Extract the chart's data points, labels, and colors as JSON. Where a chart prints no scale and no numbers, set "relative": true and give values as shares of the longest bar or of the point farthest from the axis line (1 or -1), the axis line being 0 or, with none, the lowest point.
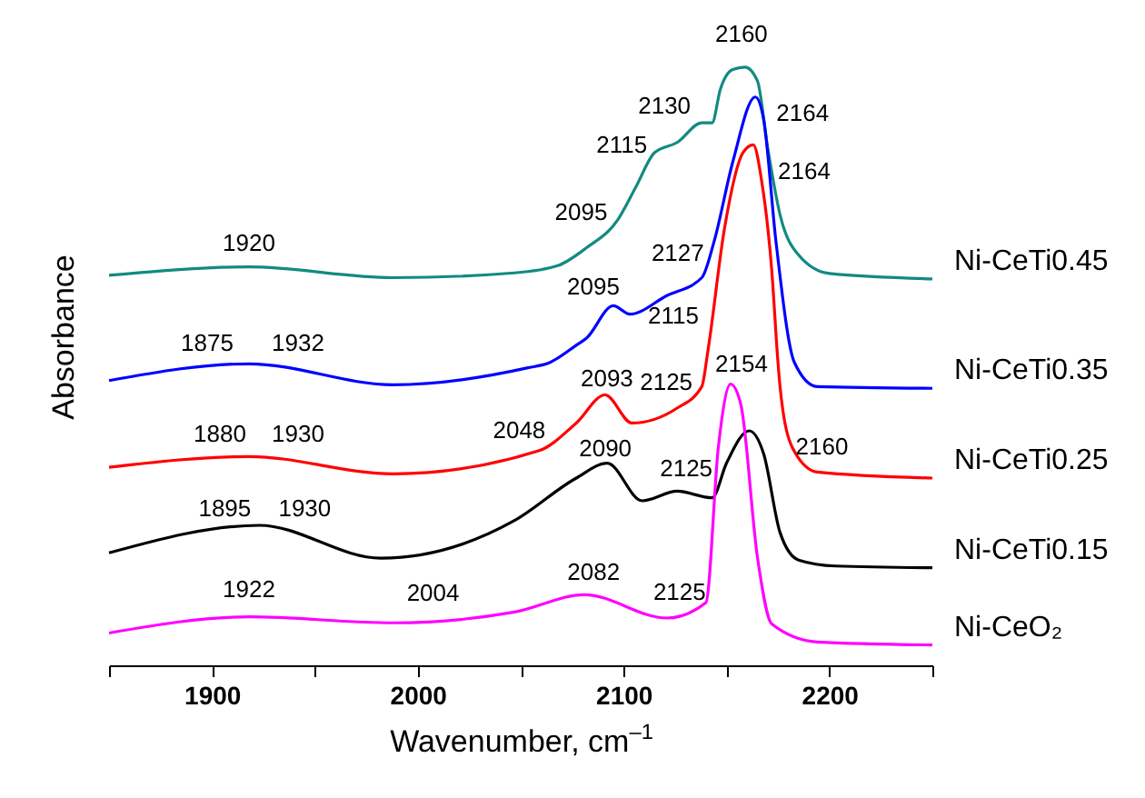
{
  "chart_data": {
    "type": "line",
    "xlabel": "Wavenumber, cm$^{–1}$",
    "ylabel": "Absorbance",
    "relative": true,
    "xlim": [
      1850,
      2250
    ],
    "xticks": [
      {
        "value": 1850,
        "label": null
      },
      1900,
      {
        "value": 1950,
        "label": null
      },
      2000,
      {
        "value": 2050,
        "label": null
      },
      2100,
      {
        "value": 2150,
        "label": null
      },
      2200,
      {
        "value": 2250,
        "label": null
      }
    ],
    "line_style": "solid",
    "series": [
      {
        "name": "Ni-CeTi0.45",
        "color": "#128a82",
        "x": [
          1850,
          1918,
          1988,
          2047,
          2068,
          2082,
          2097,
          2106,
          2115,
          2126,
          2138,
          2143,
          2147,
          2153,
          2159,
          2165,
          2170,
          2176,
          2185,
          2200,
          2250
        ],
        "values": [
          0.652,
          0.666,
          0.648,
          0.656,
          0.668,
          0.698,
          0.744,
          0.8,
          0.857,
          0.874,
          0.907,
          0.907,
          0.963,
          0.996,
          1.0,
          0.977,
          0.865,
          0.753,
          0.686,
          0.655,
          0.646
        ]
      },
      {
        "name": "Ni-CeTi0.35",
        "color": "#0000ff",
        "x": [
          1850,
          1918,
          1988,
          2053,
          2064,
          2077,
          2082,
          2095,
          2103,
          2121,
          2138,
          2144,
          2153,
          2164,
          2168,
          2174,
          2183,
          2194,
          2250
        ],
        "values": [
          0.476,
          0.504,
          0.469,
          0.497,
          0.506,
          0.535,
          0.547,
          0.601,
          0.587,
          0.618,
          0.648,
          0.709,
          0.841,
          0.95,
          0.913,
          0.709,
          0.506,
          0.466,
          0.463
        ]
      },
      {
        "name": "Ni-CeTi0.25",
        "color": "#ff0000",
        "x": [
          1850,
          1918,
          1988,
          2059,
          2077,
          2091,
          2104,
          2126,
          2138,
          2141,
          2149,
          2158,
          2163,
          2167,
          2172,
          2175,
          2176,
          2182,
          2194,
          2250
        ],
        "values": [
          0.331,
          0.349,
          0.32,
          0.359,
          0.405,
          0.452,
          0.405,
          0.43,
          0.466,
          0.527,
          0.73,
          0.857,
          0.87,
          0.811,
          0.659,
          0.506,
          0.466,
          0.364,
          0.323,
          0.313
        ]
      },
      {
        "name": "Ni-CeTi0.15",
        "color": "#000000",
        "x": [
          1850,
          1923,
          1982,
          2047,
          2077,
          2092,
          2109,
          2126,
          2143,
          2150,
          2161,
          2168,
          2176,
          2185,
          2203,
          2250
        ],
        "values": [
          0.188,
          0.234,
          0.179,
          0.242,
          0.313,
          0.338,
          0.275,
          0.291,
          0.28,
          0.338,
          0.392,
          0.354,
          0.222,
          0.176,
          0.166,
          0.163
        ]
      },
      {
        "name": "Ni-CeO₂",
        "color": "#ff00ff",
        "x": [
          1850,
          1918,
          1988,
          2047,
          2081,
          2121,
          2140,
          2146,
          2152,
          2157,
          2165,
          2172,
          2194,
          2250
        ],
        "values": [
          0.054,
          0.081,
          0.071,
          0.089,
          0.118,
          0.079,
          0.105,
          0.364,
          0.47,
          0.435,
          0.181,
          0.069,
          0.039,
          0.034
        ]
      }
    ],
    "annotations": [
      {
        "text": "2160",
        "x": 2159,
        "y": 1.0
      },
      {
        "text": "2130",
        "x": 2126,
        "y": 0.874
      },
      {
        "text": "2164",
        "x": 2164,
        "y": 0.95
      },
      {
        "text": "2115",
        "x": 2115,
        "y": 0.857
      },
      {
        "text": "2164",
        "x": 2163,
        "y": 0.87
      },
      {
        "text": "2095",
        "x": 2097,
        "y": 0.744
      },
      {
        "text": "1920",
        "x": 1918,
        "y": 0.666
      },
      {
        "text": "2127",
        "x": 2121,
        "y": 0.618
      },
      {
        "text": "2095",
        "x": 2095,
        "y": 0.601
      },
      {
        "text": "2115",
        "x": 2103,
        "y": 0.587
      },
      {
        "text": "1875",
        "x": 1918,
        "y": 0.504
      },
      {
        "text": "1932",
        "x": 1918,
        "y": 0.504
      },
      {
        "text": "2154",
        "x": 2152,
        "y": 0.47
      },
      {
        "text": "2093",
        "x": 2091,
        "y": 0.452
      },
      {
        "text": "2125",
        "x": 2126,
        "y": 0.43
      },
      {
        "text": "1880",
        "x": 1918,
        "y": 0.349
      },
      {
        "text": "1930",
        "x": 1918,
        "y": 0.349
      },
      {
        "text": "2048",
        "x": 2059,
        "y": 0.359
      },
      {
        "text": "2090",
        "x": 2092,
        "y": 0.338
      },
      {
        "text": "2160",
        "x": 2161,
        "y": 0.392
      },
      {
        "text": "2125",
        "x": 2126,
        "y": 0.291
      },
      {
        "text": "1895",
        "x": 1923,
        "y": 0.234
      },
      {
        "text": "1930",
        "x": 1923,
        "y": 0.234
      },
      {
        "text": "1922",
        "x": 1918,
        "y": 0.081
      },
      {
        "text": "2082",
        "x": 2081,
        "y": 0.118
      },
      {
        "text": "2004",
        "x": 1988,
        "y": 0.071
      },
      {
        "text": "2125",
        "x": 2121,
        "y": 0.079
      }
    ]
  }
}
